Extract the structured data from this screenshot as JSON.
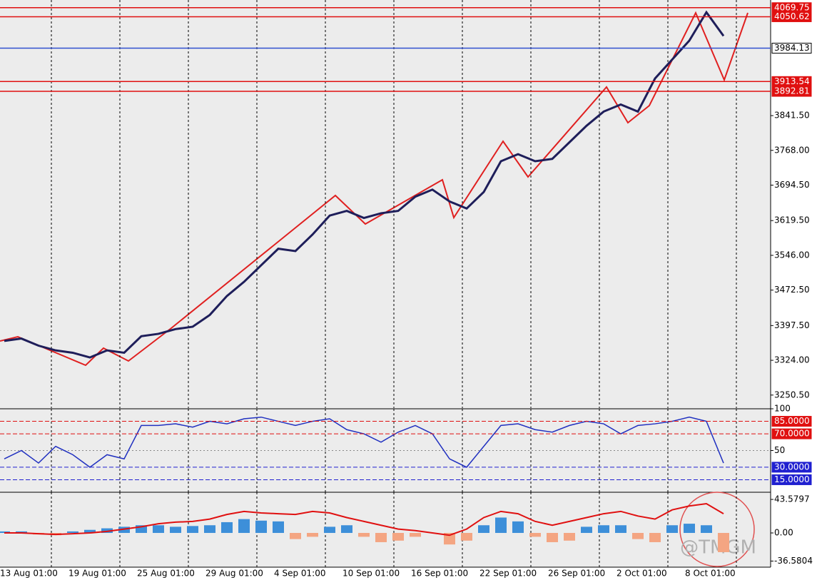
{
  "chart_data": [
    {
      "type": "line",
      "color": "#1e1e5a",
      "categories": [
        "13 Aug 01:00",
        null,
        null,
        null,
        "19 Aug 01:00",
        null,
        null,
        null,
        "25 Aug 01:00",
        null,
        null,
        null,
        "29 Aug 01:00",
        null,
        null,
        null,
        "4 Sep 01:00",
        null,
        null,
        null,
        "10 Sep 01:00",
        null,
        null,
        null,
        "16 Sep 01:00",
        null,
        null,
        null,
        "22 Sep 01:00",
        null,
        null,
        null,
        "26 Sep 01:00",
        null,
        null,
        null,
        "2 Oct 01:00",
        null,
        null,
        null,
        "8 Oct 01:00",
        null,
        null
      ],
      "values": [
        3365,
        3370,
        3355,
        3345,
        3340,
        3330,
        3345,
        3340,
        3375,
        3380,
        3390,
        3395,
        3420,
        3460,
        3490,
        3525,
        3560,
        3555,
        3590,
        3630,
        3640,
        3625,
        3635,
        3640,
        3670,
        3685,
        3660,
        3645,
        3680,
        3745,
        3760,
        3745,
        3750,
        3785,
        3820,
        3850,
        3865,
        3850,
        3920,
        3960,
        4000,
        4060,
        4010
      ],
      "ylim": [
        3223,
        4086
      ],
      "yticks": [
        {
          "value": 3250.5,
          "label": "3250.50"
        },
        {
          "value": 3324,
          "label": "3324.00"
        },
        {
          "value": 3397.5,
          "label": "3397.50"
        },
        {
          "value": 3472.5,
          "label": "3472.50"
        },
        {
          "value": 3546,
          "label": "3546.00"
        },
        {
          "value": 3619.5,
          "label": "3619.50"
        },
        {
          "value": 3694.5,
          "label": "3694.50"
        },
        {
          "value": 3768,
          "label": "3768.00"
        },
        {
          "value": 3841.5,
          "label": "3841.50"
        }
      ],
      "levels": [
        {
          "value": 4069.75,
          "label": "4069.75",
          "color": "#e01010"
        },
        {
          "value": 4050.62,
          "label": "4050.62",
          "color": "#e01010"
        },
        {
          "value": 3984.13,
          "label": "3984.13",
          "color": "#3050d0"
        },
        {
          "value": 3913.54,
          "label": "3913.54",
          "color": "#e01010"
        },
        {
          "value": 3892.81,
          "label": "3892.81",
          "color": "#e01010"
        }
      ],
      "grid": true
    },
    {
      "type": "line",
      "color": "#2030c0",
      "values": [
        40,
        50,
        35,
        55,
        45,
        30,
        45,
        40,
        80,
        80,
        82,
        78,
        85,
        82,
        88,
        90,
        85,
        80,
        85,
        88,
        75,
        70,
        60,
        72,
        80,
        70,
        40,
        30,
        55,
        80,
        82,
        75,
        72,
        80,
        85,
        82,
        70,
        80,
        82,
        85,
        90,
        85,
        35
      ],
      "ylim": [
        0,
        100
      ],
      "yticks": [
        100,
        50
      ],
      "levels": [
        {
          "value": 85,
          "label": "85.0000",
          "color": "#e01010"
        },
        {
          "value": 70,
          "label": "70.0000",
          "color": "#e01010"
        },
        {
          "value": 30,
          "label": "30.0000",
          "color": "#2020d0"
        },
        {
          "value": 15,
          "label": "15.0000",
          "color": "#2020d0"
        }
      ]
    },
    {
      "type": "bar",
      "positive_color": "#3d8fd9",
      "negative_color": "#f4a582",
      "values": [
        2,
        2,
        -2,
        -3,
        2,
        4,
        6,
        8,
        10,
        10,
        8,
        9,
        10,
        14,
        18,
        16,
        15,
        -8,
        -5,
        8,
        10,
        -5,
        -12,
        -10,
        -5,
        0,
        -15,
        -10,
        10,
        20,
        15,
        -5,
        -12,
        -10,
        8,
        10,
        10,
        -8,
        -12,
        10,
        12,
        10,
        -25
      ],
      "signal": [
        0,
        0,
        -1,
        -2,
        -1,
        0,
        2,
        5,
        8,
        12,
        14,
        15,
        18,
        24,
        28,
        26,
        25,
        24,
        28,
        26,
        20,
        15,
        10,
        5,
        3,
        0,
        -3,
        5,
        20,
        28,
        25,
        15,
        10,
        15,
        20,
        25,
        28,
        22,
        18,
        30,
        35,
        38,
        25
      ],
      "signal_color": "#e01010",
      "ylim": [
        -44.5,
        52.9
      ],
      "yticks": [
        {
          "value": 43.5797,
          "label": "43.5797"
        },
        {
          "value": 0,
          "label": "0.00"
        },
        {
          "value": -36.5804,
          "label": "-36.5804"
        }
      ]
    }
  ],
  "watermark": "@TMGM"
}
